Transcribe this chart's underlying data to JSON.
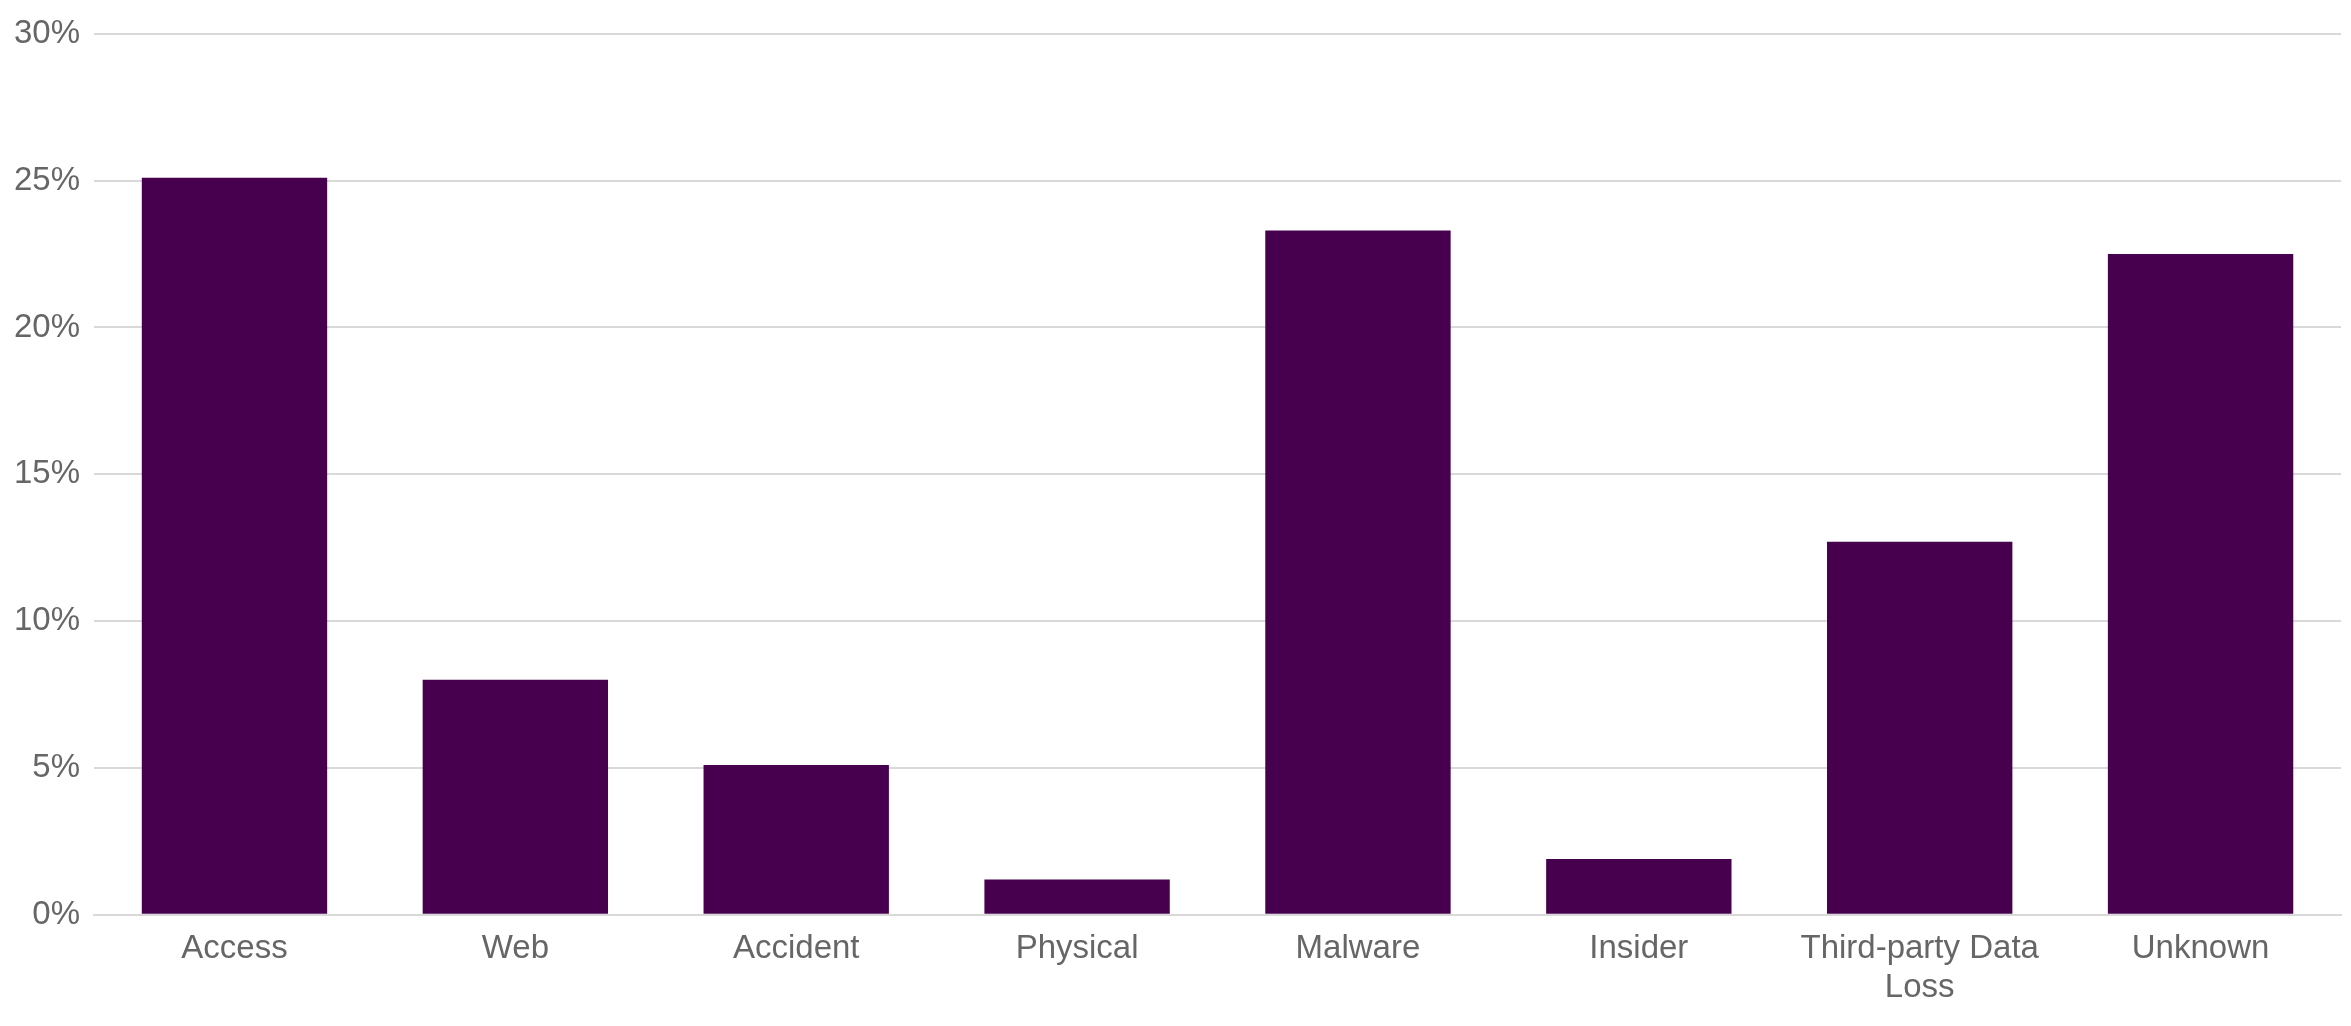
{
  "chart_data": {
    "type": "bar",
    "categories": [
      "Access",
      "Web",
      "Accident",
      "Physical",
      "Malware",
      "Insider",
      "Third-party Data Loss",
      "Unknown"
    ],
    "values": [
      25.1,
      8.0,
      5.1,
      1.2,
      23.3,
      1.9,
      12.7,
      22.5
    ],
    "color": "#46004e",
    "ylim": [
      0,
      30
    ],
    "yticks": [
      {
        "value": 0,
        "label": "0%"
      },
      {
        "value": 5,
        "label": "5%"
      },
      {
        "value": 10,
        "label": "10%"
      },
      {
        "value": 15,
        "label": "15%"
      },
      {
        "value": 20,
        "label": "20%"
      },
      {
        "value": 25,
        "label": "25%"
      },
      {
        "value": 30,
        "label": "30%"
      }
    ],
    "grid": "y",
    "legend": false
  }
}
